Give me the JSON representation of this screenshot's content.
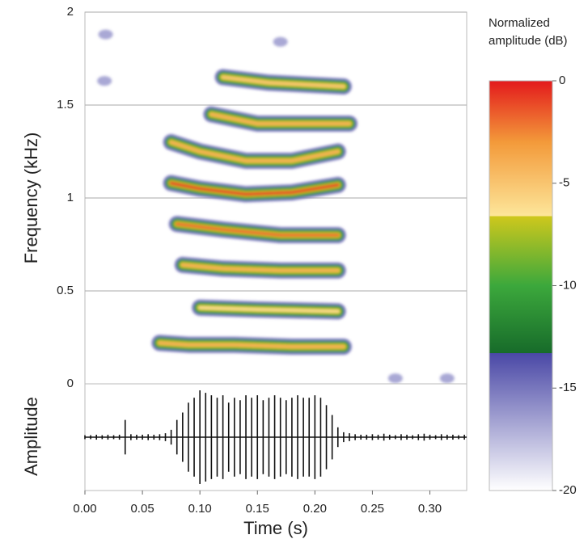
{
  "chart_data": [
    {
      "type": "spectrogram",
      "ylabel": "Frequency (kHz)",
      "xlim": [
        0,
        0.332
      ],
      "ylim": [
        0,
        2
      ],
      "yticks": [
        0,
        0.5,
        1,
        1.5,
        2
      ],
      "grid": true,
      "contour_levels": [
        -15,
        -11,
        -7
      ],
      "harmonics": [
        {
          "x": [
            0.065,
            0.09,
            0.13,
            0.18,
            0.225
          ],
          "values": [
            0.22,
            0.21,
            0.21,
            0.2,
            0.2
          ],
          "level": -4
        },
        {
          "x": [
            0.1,
            0.15,
            0.22
          ],
          "values": [
            0.41,
            0.4,
            0.39
          ],
          "level": -6
        },
        {
          "x": [
            0.085,
            0.12,
            0.17,
            0.22
          ],
          "values": [
            0.64,
            0.62,
            0.61,
            0.61
          ],
          "level": -4
        },
        {
          "x": [
            0.08,
            0.12,
            0.17,
            0.22
          ],
          "values": [
            0.86,
            0.83,
            0.8,
            0.8
          ],
          "level": -2
        },
        {
          "x": [
            0.075,
            0.1,
            0.14,
            0.18,
            0.22
          ],
          "values": [
            1.08,
            1.05,
            1.02,
            1.03,
            1.07
          ],
          "level": -1
        },
        {
          "x": [
            0.075,
            0.1,
            0.14,
            0.18,
            0.22
          ],
          "values": [
            1.3,
            1.25,
            1.2,
            1.2,
            1.25
          ],
          "level": -4
        },
        {
          "x": [
            0.11,
            0.15,
            0.23
          ],
          "values": [
            1.45,
            1.4,
            1.4
          ],
          "level": -4
        },
        {
          "x": [
            0.12,
            0.16,
            0.225
          ],
          "values": [
            1.65,
            1.62,
            1.6
          ],
          "level": -5
        }
      ],
      "spots": {
        "x": [
          0.018,
          0.017,
          0.17,
          0.27,
          0.315
        ],
        "values": [
          1.88,
          1.63,
          1.84,
          0.03,
          0.03
        ],
        "level": -16
      },
      "colorbar": {
        "title": "Normalized amplitude (dB)",
        "ylim": [
          -20,
          0
        ],
        "yticks": [
          0,
          -5,
          -10,
          -15,
          -20
        ],
        "colorscale": [
          {
            "value": 0,
            "color": "#e31a1c"
          },
          {
            "value": -3,
            "color": "#f39a3a"
          },
          {
            "value": -6.6,
            "color": "#fde69a"
          },
          {
            "value": -6.6,
            "color": "#cfc81c"
          },
          {
            "value": -10,
            "color": "#3ca83c"
          },
          {
            "value": -13.3,
            "color": "#176b2a"
          },
          {
            "value": -13.3,
            "color": "#4a48a6"
          },
          {
            "value": -20,
            "color": "#ffffff"
          }
        ]
      }
    },
    {
      "type": "waveform",
      "ylabel": "Amplitude",
      "xlabel": "Time (s)",
      "xlim": [
        0,
        0.332
      ],
      "ylim": [
        -1,
        1
      ],
      "color": "#111111",
      "xticks": [
        {
          "value": 0,
          "label": "0.00"
        },
        {
          "value": 0.05,
          "label": "0.05"
        },
        {
          "value": 0.1,
          "label": "0.10"
        },
        {
          "value": 0.15,
          "label": "0.15"
        },
        {
          "value": 0.2,
          "label": "0.20"
        },
        {
          "value": 0.25,
          "label": "0.25"
        },
        {
          "value": 0.3,
          "label": "0.30"
        }
      ],
      "x": [
        0,
        0.005,
        0.01,
        0.015,
        0.02,
        0.025,
        0.03,
        0.035,
        0.04,
        0.045,
        0.05,
        0.055,
        0.06,
        0.065,
        0.07,
        0.075,
        0.08,
        0.085,
        0.09,
        0.095,
        0.1,
        0.105,
        0.11,
        0.115,
        0.12,
        0.125,
        0.13,
        0.135,
        0.14,
        0.145,
        0.15,
        0.155,
        0.16,
        0.165,
        0.17,
        0.175,
        0.18,
        0.185,
        0.19,
        0.195,
        0.2,
        0.205,
        0.21,
        0.215,
        0.22,
        0.225,
        0.23,
        0.235,
        0.24,
        0.245,
        0.25,
        0.255,
        0.26,
        0.265,
        0.27,
        0.275,
        0.28,
        0.285,
        0.29,
        0.295,
        0.3,
        0.305,
        0.31,
        0.315,
        0.32,
        0.325,
        0.33
      ],
      "values": [
        0.04,
        0.04,
        0.05,
        0.04,
        0.05,
        0.04,
        0.05,
        0.35,
        0.06,
        0.05,
        0.05,
        0.06,
        0.05,
        0.06,
        0.08,
        0.15,
        0.35,
        0.5,
        0.7,
        0.8,
        0.95,
        0.9,
        0.85,
        0.8,
        0.85,
        0.7,
        0.8,
        0.75,
        0.85,
        0.8,
        0.85,
        0.75,
        0.8,
        0.85,
        0.8,
        0.75,
        0.8,
        0.85,
        0.8,
        0.8,
        0.85,
        0.8,
        0.65,
        0.45,
        0.2,
        0.1,
        0.08,
        0.06,
        0.05,
        0.05,
        0.06,
        0.05,
        0.07,
        0.05,
        0.04,
        0.06,
        0.05,
        0.04,
        0.06,
        0.07,
        0.05,
        0.04,
        0.06,
        0.05,
        0.05,
        0.04,
        0.05
      ]
    }
  ]
}
